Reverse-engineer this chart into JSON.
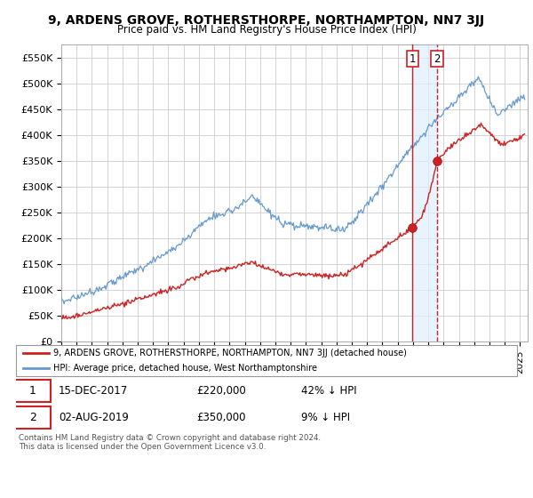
{
  "title": "9, ARDENS GROVE, ROTHERSTHORPE, NORTHAMPTON, NN7 3JJ",
  "subtitle": "Price paid vs. HM Land Registry's House Price Index (HPI)",
  "ylabel_ticks": [
    "£0",
    "£50K",
    "£100K",
    "£150K",
    "£200K",
    "£250K",
    "£300K",
    "£350K",
    "£400K",
    "£450K",
    "£500K",
    "£550K"
  ],
  "ytick_values": [
    0,
    50000,
    100000,
    150000,
    200000,
    250000,
    300000,
    350000,
    400000,
    450000,
    500000,
    550000
  ],
  "ylim": [
    0,
    575000
  ],
  "xlim_start": 1995.0,
  "xlim_end": 2025.5,
  "hpi_color": "#6699cc",
  "price_color": "#cc2222",
  "point1_date_num": 2017.96,
  "point1_price": 220000,
  "point2_date_num": 2019.58,
  "point2_price": 350000,
  "legend_entry1": "9, ARDENS GROVE, ROTHERSTHORPE, NORTHAMPTON, NN7 3JJ (detached house)",
  "legend_entry2": "HPI: Average price, detached house, West Northamptonshire",
  "table_row1": [
    "1",
    "15-DEC-2017",
    "£220,000",
    "42% ↓ HPI"
  ],
  "table_row2": [
    "2",
    "02-AUG-2019",
    "£350,000",
    "9% ↓ HPI"
  ],
  "footer": "Contains HM Land Registry data © Crown copyright and database right 2024.\nThis data is licensed under the Open Government Licence v3.0.",
  "background_color": "#ffffff",
  "grid_color": "#cccccc",
  "shade_color": "#ddeeff"
}
